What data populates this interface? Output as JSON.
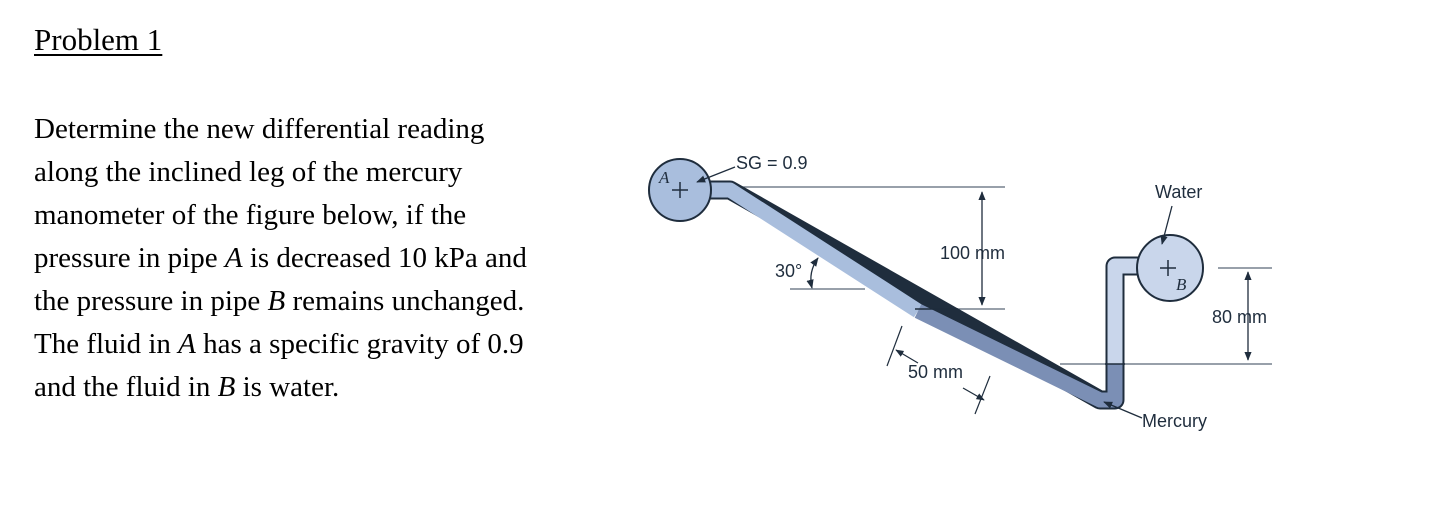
{
  "heading": "Problem 1",
  "statement": {
    "l1": "Determine the new differential reading",
    "l2": "along the inclined leg of the mercury",
    "l3": "manometer of the figure below, if the",
    "l4_a": "pressure in pipe ",
    "l4_b": "A",
    "l4_c": " is decreased 10 kPa and",
    "l5_a": "the pressure in pipe ",
    "l5_b": "B",
    "l5_c": " remains unchanged.",
    "l6_a": "The fluid in ",
    "l6_b": "A",
    "l6_c": " has a specific gravity of 0.9",
    "l7_a": "and the fluid in ",
    "l7_b": "B",
    "l7_c": " is water."
  },
  "figure": {
    "pipe_a_letter": "A",
    "pipe_b_letter": "B",
    "sg_label": "SG = 0.9",
    "water_label": "Water",
    "mercury_label": "Mercury",
    "angle_label": "30°",
    "dim_100": "100 mm",
    "dim_50": "50 mm",
    "dim_80": "80 mm",
    "colors": {
      "fluid_a": "#a9bedd",
      "mercury": "#7b8fb5",
      "water": "#c9d6eb",
      "outline": "#1f2d3d"
    }
  }
}
